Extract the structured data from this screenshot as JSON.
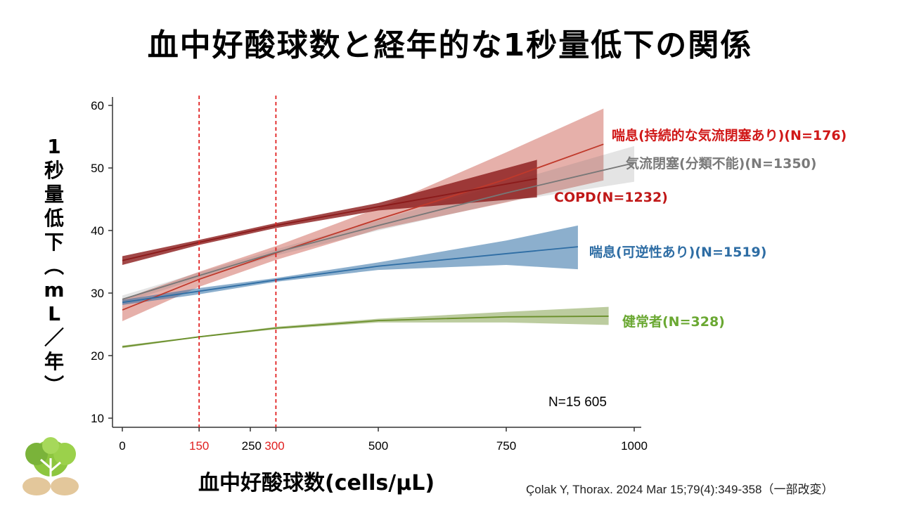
{
  "slide": {
    "title": "血中好酸球数と経年的な1秒量低下の関係",
    "citation": "Çolak Y, Thorax. 2024 Mar 15;79(4):349-358（一部改変）",
    "n_total": "N=15 605"
  },
  "colors": {
    "asthma_persistent": "#c0392b",
    "airflow_unclassified": "#777777",
    "copd": "#8b1a1a",
    "asthma_reversible": "#2e6da4",
    "healthy": "#6a8f2a",
    "reference_line": "#e02020",
    "axis": "#333333"
  },
  "chart_data": {
    "type": "line",
    "xlabel": "血中好酸球数(cells/μL)",
    "ylabel": "1秒量低下(mL/年)",
    "xlim": [
      0,
      1000
    ],
    "ylim": [
      10,
      60
    ],
    "x_ticks": [
      "0",
      "150",
      "250",
      "300",
      "500",
      "750",
      "1000"
    ],
    "x_tick_values": [
      0,
      150,
      250,
      300,
      500,
      750,
      1000
    ],
    "y_ticks": [
      "10",
      "20",
      "30",
      "40",
      "50",
      "60"
    ],
    "y_tick_values": [
      10,
      20,
      30,
      40,
      50,
      60
    ],
    "reference_lines_x": [
      150,
      300
    ],
    "grid": false,
    "series": [
      {
        "key": "asthma_persistent",
        "name": "喘息(持続的な気流閉塞あり)(N=176)",
        "color": "#c0392b",
        "band_opacity": 0.4,
        "x": [
          0,
          150,
          300,
          500,
          750,
          940
        ],
        "y": [
          27.3,
          32.2,
          36.4,
          41.8,
          48.2,
          53.8
        ],
        "lower": [
          25.5,
          31.0,
          35.3,
          40.2,
          44.5,
          48.0
        ],
        "upper": [
          29.0,
          33.4,
          37.5,
          43.6,
          52.5,
          59.5
        ]
      },
      {
        "key": "airflow_unclassified",
        "name": "気流閉塞(分類不能)(N=1350)",
        "color": "#777777",
        "band_opacity": 0.2,
        "x": [
          0,
          150,
          300,
          500,
          750,
          1000
        ],
        "y": [
          29.0,
          32.8,
          36.5,
          40.8,
          46.0,
          50.8
        ],
        "lower": [
          28.4,
          32.3,
          36.0,
          40.0,
          44.6,
          47.8
        ],
        "upper": [
          29.6,
          33.3,
          37.0,
          41.6,
          47.6,
          53.5
        ]
      },
      {
        "key": "copd",
        "name": "COPD(N=1232)",
        "color": "#8b1a1a",
        "band_opacity": 0.8,
        "x": [
          0,
          150,
          300,
          500,
          810
        ],
        "y": [
          35.2,
          38.1,
          40.8,
          43.8,
          48.3
        ],
        "lower": [
          34.5,
          37.7,
          40.4,
          43.2,
          45.3
        ],
        "upper": [
          35.9,
          38.5,
          41.2,
          44.4,
          51.3
        ]
      },
      {
        "key": "asthma_reversible",
        "name": "喘息(可逆性あり)(N=1519)",
        "color": "#2e6da4",
        "band_opacity": 0.55,
        "x": [
          0,
          150,
          300,
          500,
          750,
          890
        ],
        "y": [
          28.5,
          30.3,
          32.1,
          34.3,
          36.3,
          37.4
        ],
        "lower": [
          28.1,
          29.8,
          31.8,
          33.7,
          34.5,
          33.8
        ],
        "upper": [
          28.9,
          30.8,
          32.4,
          34.9,
          38.4,
          40.8
        ]
      },
      {
        "key": "healthy",
        "name": "健常者(N=328)",
        "color": "#6a8f2a",
        "band_opacity": 0.45,
        "x": [
          0,
          150,
          300,
          500,
          750,
          950
        ],
        "y": [
          21.4,
          23.0,
          24.4,
          25.6,
          26.2,
          26.3
        ],
        "lower": [
          21.2,
          22.9,
          24.2,
          25.3,
          25.3,
          24.9
        ],
        "upper": [
          21.6,
          23.1,
          24.6,
          25.9,
          27.0,
          27.8
        ]
      }
    ]
  }
}
